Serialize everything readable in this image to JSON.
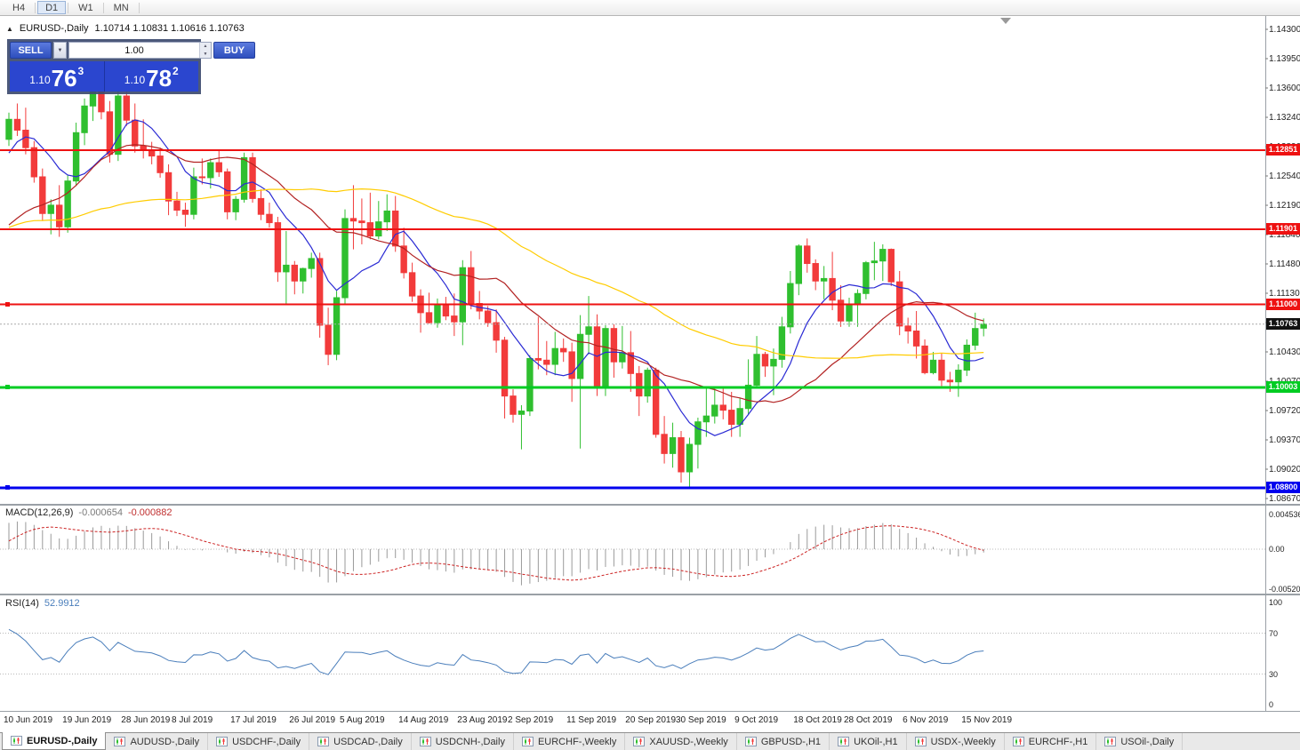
{
  "toolbar": {
    "timeframes": [
      {
        "label": "H4",
        "active": false
      },
      {
        "label": "D1",
        "active": true
      },
      {
        "label": "W1",
        "active": false
      },
      {
        "label": "MN",
        "active": false
      }
    ]
  },
  "chart": {
    "title": "EURUSD-,Daily",
    "ohlc": "1.10714 1.10831 1.10616 1.10763"
  },
  "trade_panel": {
    "sell_label": "SELL",
    "buy_label": "BUY",
    "volume": "1.00",
    "sell_price": {
      "base": "1.10",
      "big": "76",
      "sup": "3"
    },
    "buy_price": {
      "base": "1.10",
      "big": "78",
      "sup": "2"
    }
  },
  "indicators": {
    "macd": {
      "name": "MACD(12,26,9)",
      "v1": "-0.000654",
      "v2": "-0.000882",
      "scale": [
        "0.0045360",
        "0.00",
        "-0.0052050"
      ]
    },
    "rsi": {
      "name": "RSI(14)",
      "value": "52.9912",
      "scale": [
        "100",
        "70",
        "30",
        "0"
      ],
      "levels": [
        70,
        30
      ]
    }
  },
  "tabs": [
    {
      "label": "EURUSD-,Daily",
      "active": true
    },
    {
      "label": "AUDUSD-,Daily",
      "active": false
    },
    {
      "label": "USDCHF-,Daily",
      "active": false
    },
    {
      "label": "USDCAD-,Daily",
      "active": false
    },
    {
      "label": "USDCNH-,Daily",
      "active": false
    },
    {
      "label": "EURCHF-,Weekly",
      "active": false
    },
    {
      "label": "XAUUSD-,Weekly",
      "active": false
    },
    {
      "label": "GBPUSD-,H1",
      "active": false
    },
    {
      "label": "UKOil-,H1",
      "active": false
    },
    {
      "label": "USDX-,Weekly",
      "active": false
    },
    {
      "label": "EURCHF-,H1",
      "active": false
    },
    {
      "label": "USOil-,Daily",
      "active": false
    }
  ],
  "chart_data": {
    "type": "candlestick",
    "symbol": "EURUSD-",
    "timeframe": "Daily",
    "price_axis_ticks": [
      "1.14300",
      "1.13950",
      "1.13600",
      "1.13240",
      "1.12890",
      "1.12540",
      "1.12190",
      "1.11840",
      "1.11480",
      "1.11130",
      "1.10780",
      "1.10430",
      "1.10070",
      "1.09720",
      "1.09370",
      "1.09020",
      "1.08670"
    ],
    "price_axis_range": {
      "top": 1.143,
      "bottom": 1.0867
    },
    "hlines": [
      {
        "price": 1.12851,
        "label": "1.12851",
        "color": "#ee1111",
        "width": 2,
        "handle": false
      },
      {
        "price": 1.11901,
        "label": "1.11901",
        "color": "#ee1111",
        "width": 2,
        "handle": false
      },
      {
        "price": 1.11,
        "label": "1.11000",
        "color": "#ee1111",
        "width": 2,
        "handle": true
      },
      {
        "price": 1.10003,
        "label": "1.10003",
        "color": "#00cc22",
        "width": 3,
        "handle": true
      },
      {
        "price": 1.088,
        "label": "1.08800",
        "color": "#0000ee",
        "width": 3,
        "handle": true
      }
    ],
    "current_price": {
      "value": 1.10763,
      "label": "1.10763",
      "tag_bg": "#111111"
    },
    "date_labels": [
      {
        "t": "10 Jun 2019",
        "i": 0
      },
      {
        "t": "19 Jun 2019",
        "i": 7
      },
      {
        "t": "28 Jun 2019",
        "i": 14
      },
      {
        "t": "8 Jul 2019",
        "i": 20
      },
      {
        "t": "17 Jul 2019",
        "i": 27
      },
      {
        "t": "26 Jul 2019",
        "i": 34
      },
      {
        "t": "5 Aug 2019",
        "i": 40
      },
      {
        "t": "14 Aug 2019",
        "i": 47
      },
      {
        "t": "23 Aug 2019",
        "i": 54
      },
      {
        "t": "2 Sep 2019",
        "i": 60
      },
      {
        "t": "11 Sep 2019",
        "i": 67
      },
      {
        "t": "20 Sep 2019",
        "i": 74
      },
      {
        "t": "30 Sep 2019",
        "i": 80
      },
      {
        "t": "9 Oct 2019",
        "i": 87
      },
      {
        "t": "18 Oct 2019",
        "i": 94
      },
      {
        "t": "28 Oct 2019",
        "i": 100
      },
      {
        "t": "6 Nov 2019",
        "i": 107
      },
      {
        "t": "15 Nov 2019",
        "i": 114
      }
    ],
    "ma": [
      {
        "period": 8,
        "color": "#2a2ad4"
      },
      {
        "period": 20,
        "color": "#b22222"
      },
      {
        "period": 50,
        "color": "#ffcc00"
      }
    ],
    "colors": {
      "up": "#2fbf2f",
      "down": "#f23b3b",
      "macd_hist": "#9a9a9a",
      "macd_signal": "#cc2222",
      "rsi": "#4a7ebb",
      "current_line": "#aaaaaa",
      "grid": "#b8b8b8"
    },
    "indicator_warmup_closes": [
      1.1228,
      1.1216,
      1.1221,
      1.1206,
      1.1192,
      1.1181,
      1.1173,
      1.1161,
      1.1155,
      1.1166,
      1.1158,
      1.1146,
      1.1139,
      1.1151,
      1.1142,
      1.1131,
      1.1123,
      1.1118,
      1.1126,
      1.1136,
      1.1129,
      1.1141,
      1.1171,
      1.1202,
      1.1241,
      1.1271,
      1.1296,
      1.1311,
      1.1301,
      1.1309
    ],
    "candles": [
      [
        1.1298,
        1.133,
        1.129,
        1.1322
      ],
      [
        1.1322,
        1.1341,
        1.1302,
        1.1309
      ],
      [
        1.1309,
        1.1336,
        1.128,
        1.1288
      ],
      [
        1.1288,
        1.1296,
        1.1246,
        1.1253
      ],
      [
        1.1253,
        1.1263,
        1.12,
        1.1209
      ],
      [
        1.1209,
        1.1226,
        1.1184,
        1.1219
      ],
      [
        1.1219,
        1.1243,
        1.1181,
        1.1193
      ],
      [
        1.1193,
        1.1255,
        1.1186,
        1.1248
      ],
      [
        1.1248,
        1.1318,
        1.1242,
        1.1306
      ],
      [
        1.1306,
        1.1347,
        1.1291,
        1.1338
      ],
      [
        1.1338,
        1.1362,
        1.132,
        1.1355
      ],
      [
        1.1355,
        1.1365,
        1.1322,
        1.1331
      ],
      [
        1.1331,
        1.1344,
        1.127,
        1.128
      ],
      [
        1.128,
        1.1362,
        1.1272,
        1.135
      ],
      [
        1.135,
        1.1358,
        1.1314,
        1.1321
      ],
      [
        1.1321,
        1.1341,
        1.1282,
        1.129
      ],
      [
        1.129,
        1.1322,
        1.1275,
        1.1285
      ],
      [
        1.1285,
        1.1295,
        1.1268,
        1.1278
      ],
      [
        1.1278,
        1.1288,
        1.1252,
        1.1258
      ],
      [
        1.1258,
        1.1268,
        1.1207,
        1.1224
      ],
      [
        1.1224,
        1.1235,
        1.1206,
        1.1213
      ],
      [
        1.1213,
        1.1222,
        1.1193,
        1.1208
      ],
      [
        1.1208,
        1.1264,
        1.1202,
        1.1253
      ],
      [
        1.1253,
        1.1275,
        1.1244,
        1.1252
      ],
      [
        1.1252,
        1.1275,
        1.1239,
        1.127
      ],
      [
        1.127,
        1.1284,
        1.1253,
        1.1259
      ],
      [
        1.1259,
        1.1263,
        1.1202,
        1.1211
      ],
      [
        1.1211,
        1.123,
        1.1201,
        1.1226
      ],
      [
        1.1226,
        1.1282,
        1.1222,
        1.1276
      ],
      [
        1.1276,
        1.1282,
        1.1222,
        1.1227
      ],
      [
        1.1227,
        1.1238,
        1.1201,
        1.1208
      ],
      [
        1.1208,
        1.1222,
        1.1192,
        1.1198
      ],
      [
        1.1198,
        1.1205,
        1.1127,
        1.1139
      ],
      [
        1.1139,
        1.1188,
        1.1101,
        1.1147
      ],
      [
        1.1147,
        1.1152,
        1.1112,
        1.1128
      ],
      [
        1.1128,
        1.1144,
        1.1113,
        1.1143
      ],
      [
        1.1143,
        1.1162,
        1.1132,
        1.1155
      ],
      [
        1.1155,
        1.1162,
        1.106,
        1.1075
      ],
      [
        1.1075,
        1.1096,
        1.1027,
        1.104
      ],
      [
        1.104,
        1.1116,
        1.1033,
        1.1108
      ],
      [
        1.1108,
        1.1214,
        1.1101,
        1.1203
      ],
      [
        1.1203,
        1.1243,
        1.1166,
        1.12
      ],
      [
        1.12,
        1.1227,
        1.1172,
        1.1198
      ],
      [
        1.1198,
        1.1234,
        1.1178,
        1.1182
      ],
      [
        1.1182,
        1.1224,
        1.1178,
        1.1199
      ],
      [
        1.1199,
        1.1232,
        1.1188,
        1.1212
      ],
      [
        1.1212,
        1.123,
        1.1163,
        1.117
      ],
      [
        1.117,
        1.1192,
        1.1131,
        1.1138
      ],
      [
        1.1138,
        1.115,
        1.1103,
        1.111
      ],
      [
        1.111,
        1.1118,
        1.1066,
        1.109
      ],
      [
        1.109,
        1.1114,
        1.1077,
        1.1078
      ],
      [
        1.1078,
        1.1107,
        1.1072,
        1.11
      ],
      [
        1.11,
        1.1109,
        1.1081,
        1.1086
      ],
      [
        1.1086,
        1.1113,
        1.1062,
        1.1079
      ],
      [
        1.1079,
        1.1153,
        1.1051,
        1.1144
      ],
      [
        1.1144,
        1.1164,
        1.1094,
        1.1101
      ],
      [
        1.1101,
        1.1116,
        1.1082,
        1.1092
      ],
      [
        1.1092,
        1.1098,
        1.1073,
        1.1078
      ],
      [
        1.1078,
        1.1094,
        1.1042,
        1.1057
      ],
      [
        1.1057,
        1.1061,
        1.0963,
        1.099
      ],
      [
        1.099,
        1.0998,
        1.0958,
        1.0968
      ],
      [
        1.0968,
        1.0979,
        1.0926,
        1.0972
      ],
      [
        1.0972,
        1.1039,
        1.0966,
        1.1035
      ],
      [
        1.1035,
        1.1085,
        1.1022,
        1.1033
      ],
      [
        1.1033,
        1.1056,
        1.1015,
        1.1028
      ],
      [
        1.1028,
        1.1067,
        1.1015,
        1.1047
      ],
      [
        1.1047,
        1.1059,
        1.1031,
        1.1043
      ],
      [
        1.1043,
        1.1054,
        1.0983,
        1.1011
      ],
      [
        1.1011,
        1.1087,
        1.0927,
        1.1064
      ],
      [
        1.1064,
        1.111,
        1.104,
        1.1073
      ],
      [
        1.1073,
        1.1088,
        1.099,
        1.1002
      ],
      [
        1.1002,
        1.1075,
        1.099,
        1.1071
      ],
      [
        1.1071,
        1.1076,
        1.1012,
        1.1031
      ],
      [
        1.1031,
        1.1074,
        1.1023,
        1.1042
      ],
      [
        1.1042,
        1.1068,
        1.0995,
        1.1017
      ],
      [
        1.1017,
        1.1026,
        1.0966,
        1.099
      ],
      [
        1.099,
        1.1024,
        1.0982,
        1.1021
      ],
      [
        1.1021,
        1.1024,
        1.094,
        1.0944
      ],
      [
        1.0944,
        1.0966,
        1.0909,
        1.0921
      ],
      [
        1.0921,
        1.0958,
        1.0904,
        1.094
      ],
      [
        1.094,
        1.0948,
        1.0886,
        1.0899
      ],
      [
        1.0899,
        1.094,
        1.0881,
        1.0932
      ],
      [
        1.0932,
        1.0964,
        1.0903,
        1.0959
      ],
      [
        1.0959,
        1.0999,
        1.0941,
        1.0966
      ],
      [
        1.0966,
        1.0999,
        1.0957,
        1.0979
      ],
      [
        1.0979,
        1.1,
        1.0962,
        1.0973
      ],
      [
        1.0973,
        1.0995,
        1.0941,
        1.0956
      ],
      [
        1.0956,
        1.0988,
        1.0941,
        1.0975
      ],
      [
        1.0975,
        1.1034,
        1.0967,
        1.1003
      ],
      [
        1.1003,
        1.1062,
        1.1002,
        1.104
      ],
      [
        1.104,
        1.1043,
        1.1013,
        1.1026
      ],
      [
        1.1026,
        1.1047,
        1.0991,
        1.1034
      ],
      [
        1.1034,
        1.1085,
        1.1024,
        1.1073
      ],
      [
        1.1073,
        1.114,
        1.1065,
        1.1125
      ],
      [
        1.1125,
        1.1172,
        1.1111,
        1.117
      ],
      [
        1.117,
        1.1179,
        1.1138,
        1.1149
      ],
      [
        1.1149,
        1.1154,
        1.1117,
        1.1128
      ],
      [
        1.1128,
        1.1146,
        1.1106,
        1.1131
      ],
      [
        1.1131,
        1.1163,
        1.1093,
        1.1105
      ],
      [
        1.1105,
        1.1123,
        1.1073,
        1.108
      ],
      [
        1.108,
        1.1108,
        1.1073,
        1.11
      ],
      [
        1.11,
        1.1118,
        1.1073,
        1.1113
      ],
      [
        1.1113,
        1.1152,
        1.1106,
        1.115
      ],
      [
        1.115,
        1.1175,
        1.1129,
        1.1152
      ],
      [
        1.1152,
        1.1172,
        1.1128,
        1.1166
      ],
      [
        1.1166,
        1.1167,
        1.1122,
        1.1127
      ],
      [
        1.1127,
        1.114,
        1.1063,
        1.1074
      ],
      [
        1.1074,
        1.1084,
        1.1053,
        1.1068
      ],
      [
        1.1068,
        1.1092,
        1.1035,
        1.105
      ],
      [
        1.105,
        1.1058,
        1.1016,
        1.1018
      ],
      [
        1.1018,
        1.1043,
        1.1016,
        1.1033
      ],
      [
        1.1033,
        1.1041,
        1.1002,
        1.1009
      ],
      [
        1.1009,
        1.1019,
        1.0995,
        1.1007
      ],
      [
        1.1007,
        1.1028,
        1.0989,
        1.1021
      ],
      [
        1.1021,
        1.1058,
        1.1014,
        1.1051
      ],
      [
        1.1051,
        1.109,
        1.1045,
        1.1071
      ],
      [
        1.10714,
        1.10831,
        1.10616,
        1.10763
      ]
    ]
  }
}
